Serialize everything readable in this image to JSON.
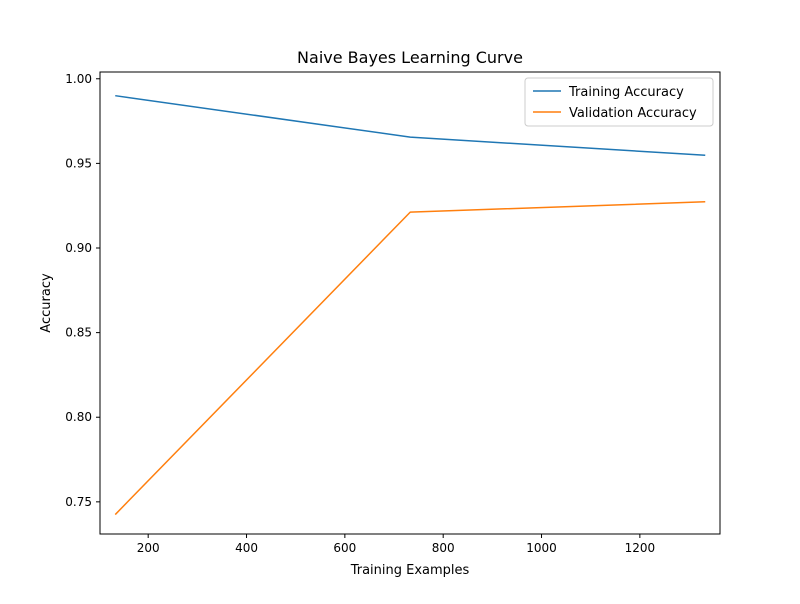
{
  "chart_data": {
    "type": "line",
    "title": "Naive Bayes Learning Curve",
    "xlabel": "Training Examples",
    "ylabel": "Accuracy",
    "xlim": [
      102,
      1363
    ],
    "ylim": [
      0.731,
      1.004
    ],
    "xticks": [
      200,
      400,
      600,
      800,
      1000,
      1200
    ],
    "yticks": [
      0.75,
      0.8,
      0.85,
      0.9,
      0.95,
      1.0
    ],
    "ytick_decimals": 2,
    "grid": false,
    "legend_position": "top-right",
    "x": [
      133,
      733,
      1333
    ],
    "series": [
      {
        "name": "Training Accuracy",
        "color": "#1f77b4",
        "values": [
          0.99,
          0.9655,
          0.9548
        ]
      },
      {
        "name": "Validation Accuracy",
        "color": "#ff7f0e",
        "values": [
          0.7425,
          0.9212,
          0.9273
        ]
      }
    ]
  }
}
